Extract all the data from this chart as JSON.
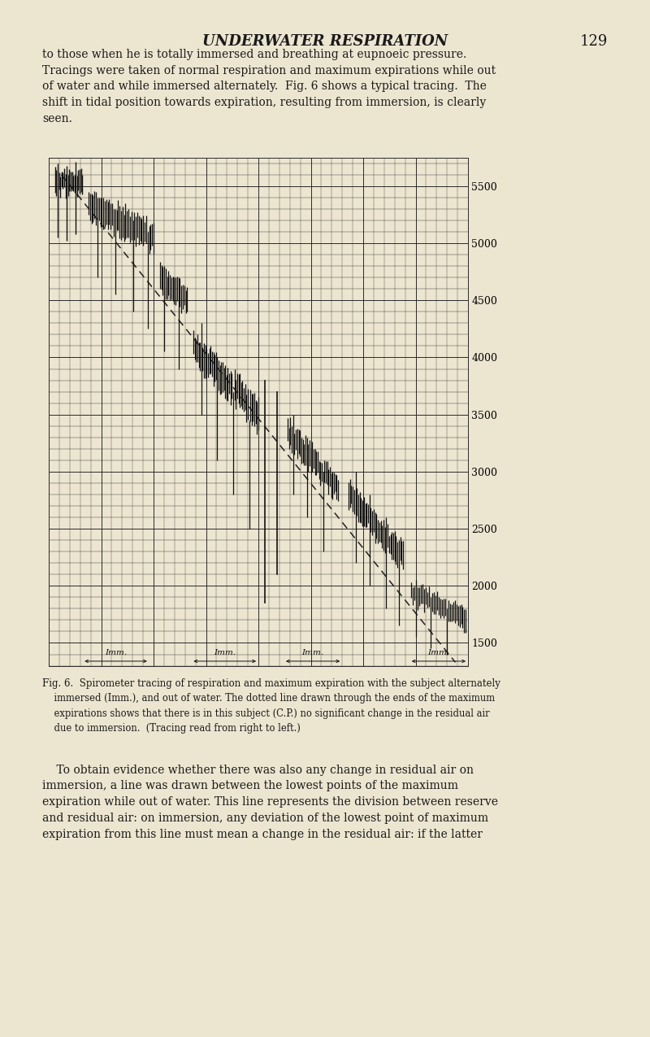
{
  "bg_color": "#ece5d0",
  "title": "UNDERWATER RESPIRATION",
  "page_num": "129",
  "body_text_top": [
    "to those when he is totally immersed and breathing at eupnoeic pressure.",
    "Tracings were taken of normal respiration and maximum expirations while out",
    "of water and while immersed alternately.  Fig. 6 shows a typical tracing.  The",
    "shift in tidal position towards expiration, resulting from immersion, is clearly",
    "seen."
  ],
  "body_text_bottom": [
    "    To obtain evidence whether there was also any change in residual air on",
    "immersion, a line was drawn between the lowest points of the maximum",
    "expiration while out of water. This line represents the division between reserve",
    "and residual air: on immersion, any deviation of the lowest point of maximum",
    "expiration from this line must mean a change in the residual air: if the latter"
  ],
  "caption_lines": [
    "Fig. 6.  Spirometer tracing of respiration and maximum expiration with the subject alternately",
    "    immersed (Imm.), and out of water. The dotted line drawn through the ends of the maximum",
    "    expirations shows that there is in this subject (C.P.) no significant change in the residual air",
    "    due to immersion.  (Tracing read from right to left.)"
  ],
  "chart": {
    "y_min": 1300,
    "y_max": 5750,
    "y_ticks": [
      1500,
      2000,
      2500,
      3000,
      3500,
      4000,
      4500,
      5000,
      5500
    ],
    "x_min": 0,
    "x_max": 100,
    "n_major_vert": 8,
    "n_minor_vert": 4,
    "dashed_line_x": [
      3,
      97
    ],
    "dashed_line_y": [
      5600,
      1330
    ],
    "imm_labels": [
      {
        "xL": 8,
        "xR": 24,
        "label": "Imm."
      },
      {
        "xL": 34,
        "xR": 50,
        "label": "Imm."
      },
      {
        "xL": 56,
        "xR": 70,
        "label": "Imm."
      },
      {
        "xL": 86,
        "xR": 100,
        "label": "Imm."
      }
    ]
  }
}
